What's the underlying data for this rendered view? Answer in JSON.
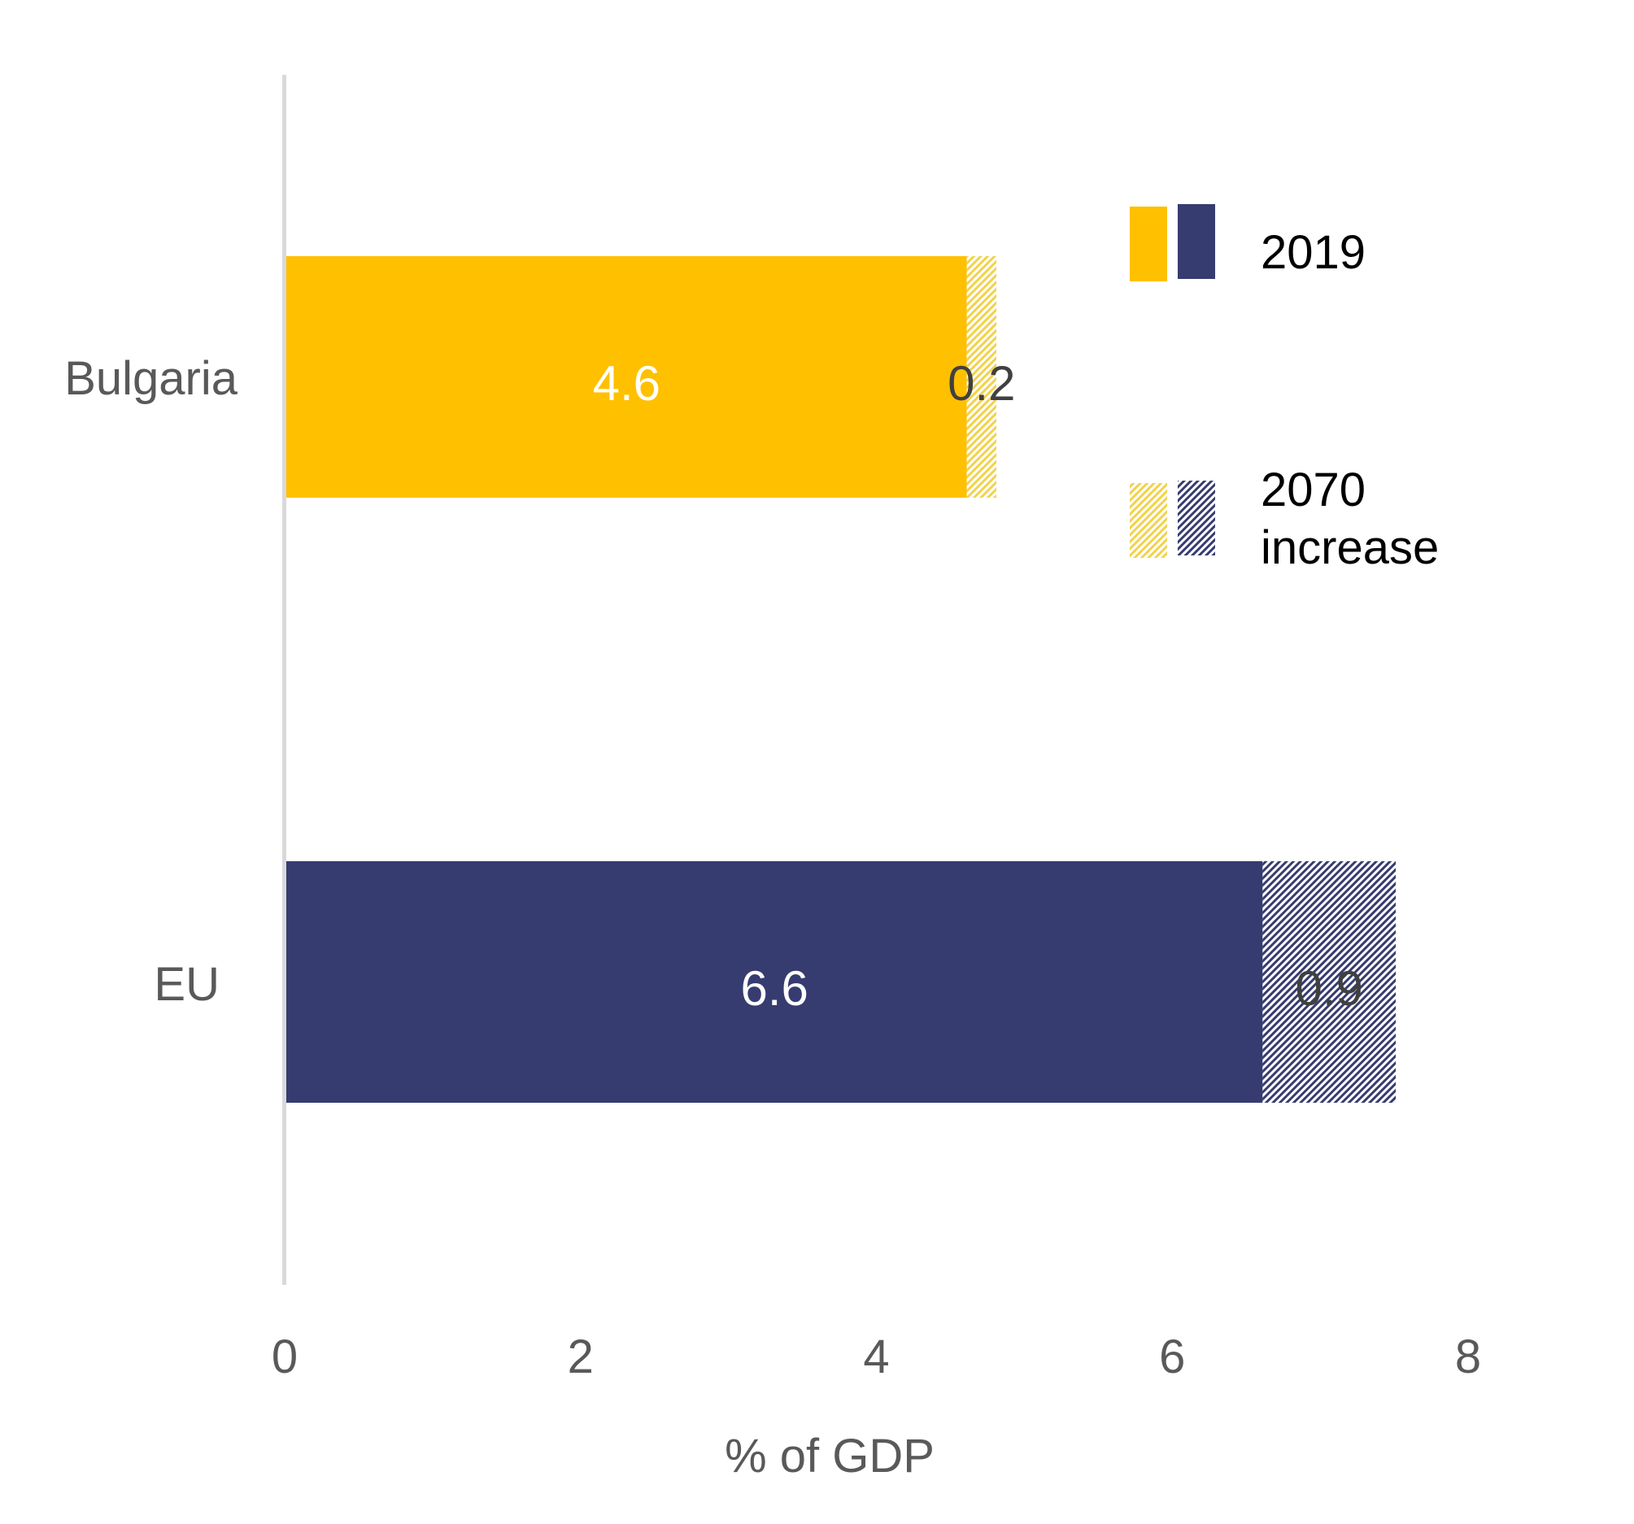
{
  "chart_data": {
    "type": "bar",
    "orientation": "horizontal",
    "stacked": true,
    "title": "",
    "xlabel": "% of GDP",
    "ylabel": "",
    "xlim": [
      0,
      8
    ],
    "x_ticks": [
      0,
      2,
      4,
      6,
      8
    ],
    "x_tick_labels": [
      "0",
      "2",
      "4",
      "6",
      "8"
    ],
    "grid": false,
    "categories": [
      "Bulgaria",
      "EU"
    ],
    "series": [
      {
        "name": "2019",
        "values": [
          4.6,
          6.6
        ],
        "labels": [
          "4.6",
          "6.6"
        ],
        "colors": [
          "#FFC000",
          "#363C70"
        ],
        "pattern": "solid"
      },
      {
        "name": "2070 increase",
        "values": [
          0.2,
          0.9
        ],
        "labels": [
          "0.2",
          "0.9"
        ],
        "colors": [
          "#F2D96B",
          "#363C70"
        ],
        "pattern": "diagonal-hatch"
      }
    ],
    "legend": {
      "position": "top-right",
      "entries": [
        {
          "label": "2019",
          "swatches": [
            "#FFC000",
            "#363C70"
          ],
          "pattern": "solid"
        },
        {
          "label_lines": [
            "2070",
            "increase"
          ],
          "swatches": [
            "#F2D96B",
            "#363C70"
          ],
          "pattern": "diagonal-hatch"
        }
      ]
    }
  }
}
